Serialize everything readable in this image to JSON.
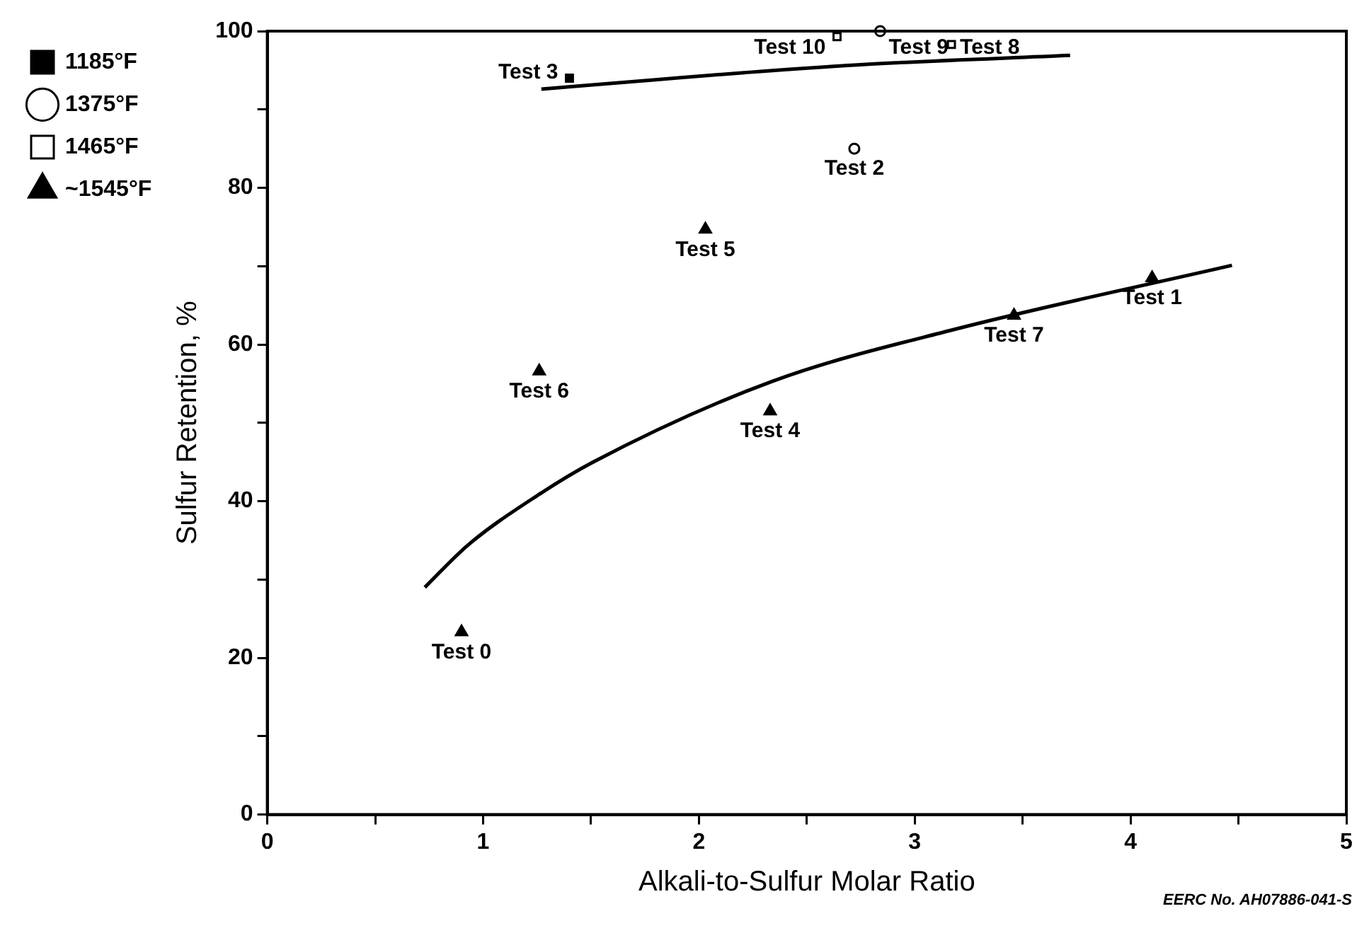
{
  "chart_data": {
    "type": "scatter",
    "xlabel": "Alkali-to-Sulfur Molar Ratio",
    "ylabel": "Sulfur Retention, %",
    "xlim": [
      0,
      5
    ],
    "xticks": [
      0,
      {
        "value": 0.5,
        "label": null
      },
      1,
      {
        "value": 1.5,
        "label": null
      },
      2,
      {
        "value": 2.5,
        "label": null
      },
      3,
      {
        "value": 3.5,
        "label": null
      },
      4,
      {
        "value": 4.5,
        "label": null
      },
      5
    ],
    "ylim": [
      0,
      100
    ],
    "yticks": [
      0,
      {
        "value": 10,
        "label": null
      },
      20,
      {
        "value": 30,
        "label": null
      },
      40,
      {
        "value": 50,
        "label": null
      },
      60,
      {
        "value": 70,
        "label": null
      },
      80,
      {
        "value": 90,
        "label": null
      },
      100
    ],
    "grid": false,
    "legend": "top left",
    "series": [
      {
        "name": "1185°F",
        "color": "#000000",
        "marker": "square",
        "x": [
          1.4
        ],
        "values": [
          94
        ]
      },
      {
        "name": "1375°F",
        "color": "#000000",
        "marker": "circle",
        "x": [
          2.72,
          2.84
        ],
        "values": [
          85,
          100
        ]
      },
      {
        "name": "1465°F",
        "color": "#000000",
        "marker": "square",
        "x": [
          2.64,
          3.17
        ],
        "values": [
          99.3,
          98.3
        ]
      },
      {
        "name": "~1545°F",
        "color": "#000000",
        "marker": "triangle",
        "x": [
          0.9,
          1.26,
          2.03,
          2.33,
          3.46,
          4.1
        ],
        "values": [
          23.3,
          56.6,
          74.7,
          51.5,
          63.7,
          68.5
        ]
      },
      {
        "type": "line",
        "color": "#000000",
        "marker": "none",
        "x": [
          1.27,
          1.8,
          2.21,
          2.8,
          3.72
        ],
        "values": [
          92.6,
          93.8,
          94.7,
          95.8,
          96.9
        ]
      },
      {
        "type": "line",
        "color": "#000000",
        "marker": "none",
        "x": [
          0.73,
          0.93,
          1.25,
          1.51,
          2.34,
          3.18,
          4.47
        ],
        "values": [
          29,
          34.4,
          40.7,
          45,
          55.3,
          61.9,
          70.1
        ]
      }
    ],
    "annotations": [
      {
        "text": "Test 0",
        "x": 0.9,
        "y": 23.3
      },
      {
        "text": "Test 1",
        "x": 4.1,
        "y": 68.5
      },
      {
        "text": "Test 2",
        "x": 2.72,
        "y": 85
      },
      {
        "text": "Test 3",
        "x": 1.4,
        "y": 94
      },
      {
        "text": "Test 4",
        "x": 2.33,
        "y": 51.5
      },
      {
        "text": "Test 5",
        "x": 2.03,
        "y": 74.7
      },
      {
        "text": "Test 6",
        "x": 1.26,
        "y": 56.6
      },
      {
        "text": "Test 7",
        "x": 3.46,
        "y": 63.7
      },
      {
        "text": "Test 8",
        "x": 3.17,
        "y": 98.3
      },
      {
        "text": "Test 9",
        "x": 2.84,
        "y": 100
      },
      {
        "text": "Test 10",
        "x": 2.64,
        "y": 99.3
      },
      "EERC No. AH07886-041-S"
    ]
  }
}
